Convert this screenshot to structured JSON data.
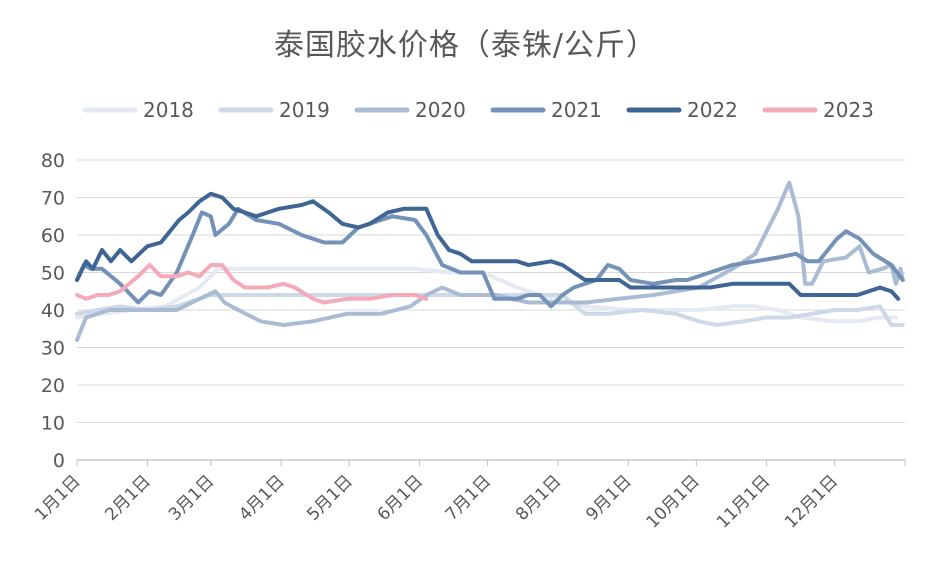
{
  "chart_data": {
    "type": "line",
    "title": "泰国胶水价格（泰铢/公斤）",
    "xlabel": "",
    "ylabel": "",
    "ylim": [
      0,
      80
    ],
    "yticks": [
      0,
      10,
      20,
      30,
      40,
      50,
      60,
      70,
      80
    ],
    "x_unit": "day of year",
    "xlim": [
      1,
      366
    ],
    "xticks": [
      {
        "label": "1月1日",
        "day": 1
      },
      {
        "label": "2月1日",
        "day": 32
      },
      {
        "label": "3月1日",
        "day": 60
      },
      {
        "label": "4月1日",
        "day": 91
      },
      {
        "label": "5月1日",
        "day": 121
      },
      {
        "label": "6月1日",
        "day": 152
      },
      {
        "label": "7月1日",
        "day": 182
      },
      {
        "label": "8月1日",
        "day": 213
      },
      {
        "label": "9月1日",
        "day": 244
      },
      {
        "label": "10月1日",
        "day": 274
      },
      {
        "label": "11月1日",
        "day": 305
      },
      {
        "label": "12月1日",
        "day": 335
      }
    ],
    "grid": "horizontal",
    "legend_position": "top",
    "series": [
      {
        "name": "2018",
        "color": "#e4e9f2",
        "points": [
          [
            1,
            38
          ],
          [
            12,
            39
          ],
          [
            25,
            40
          ],
          [
            40,
            41
          ],
          [
            55,
            46
          ],
          [
            63,
            51
          ],
          [
            75,
            51
          ],
          [
            90,
            51
          ],
          [
            100,
            51
          ],
          [
            110,
            51
          ],
          [
            120,
            51
          ],
          [
            135,
            51
          ],
          [
            150,
            51
          ],
          [
            165,
            50
          ],
          [
            180,
            50
          ],
          [
            195,
            46
          ],
          [
            210,
            43
          ],
          [
            225,
            41
          ],
          [
            245,
            40
          ],
          [
            260,
            40
          ],
          [
            275,
            40
          ],
          [
            290,
            41
          ],
          [
            300,
            41
          ],
          [
            310,
            40
          ],
          [
            320,
            38
          ],
          [
            335,
            37
          ],
          [
            345,
            37
          ],
          [
            355,
            38
          ],
          [
            362,
            38
          ]
        ]
      },
      {
        "name": "2019",
        "color": "#cdd8e8",
        "points": [
          [
            1,
            39
          ],
          [
            10,
            40
          ],
          [
            20,
            41
          ],
          [
            32,
            40
          ],
          [
            45,
            41
          ],
          [
            60,
            44
          ],
          [
            70,
            44
          ],
          [
            80,
            44
          ],
          [
            90,
            44
          ],
          [
            100,
            44
          ],
          [
            110,
            44
          ],
          [
            125,
            44
          ],
          [
            140,
            44
          ],
          [
            155,
            44
          ],
          [
            170,
            44
          ],
          [
            185,
            44
          ],
          [
            200,
            44
          ],
          [
            210,
            44
          ],
          [
            215,
            44
          ],
          [
            225,
            39
          ],
          [
            235,
            39
          ],
          [
            250,
            40
          ],
          [
            265,
            39
          ],
          [
            275,
            37
          ],
          [
            283,
            36
          ],
          [
            295,
            37
          ],
          [
            305,
            38
          ],
          [
            315,
            38
          ],
          [
            325,
            39
          ],
          [
            335,
            40
          ],
          [
            345,
            40
          ],
          [
            355,
            41
          ],
          [
            360,
            36
          ],
          [
            365,
            36
          ]
        ]
      },
      {
        "name": "2020",
        "color": "#a9bcd4",
        "points": [
          [
            1,
            32
          ],
          [
            5,
            38
          ],
          [
            15,
            40
          ],
          [
            30,
            40
          ],
          [
            45,
            40
          ],
          [
            55,
            43
          ],
          [
            62,
            45
          ],
          [
            66,
            42
          ],
          [
            72,
            40
          ],
          [
            82,
            37
          ],
          [
            92,
            36
          ],
          [
            105,
            37
          ],
          [
            120,
            39
          ],
          [
            135,
            39
          ],
          [
            148,
            41
          ],
          [
            155,
            44
          ],
          [
            162,
            46
          ],
          [
            170,
            44
          ],
          [
            185,
            44
          ],
          [
            200,
            42
          ],
          [
            215,
            42
          ],
          [
            225,
            42
          ],
          [
            240,
            43
          ],
          [
            255,
            44
          ],
          [
            265,
            45
          ],
          [
            275,
            46
          ],
          [
            290,
            51
          ],
          [
            300,
            55
          ],
          [
            305,
            61
          ],
          [
            310,
            67
          ],
          [
            315,
            74
          ],
          [
            319,
            65
          ],
          [
            322,
            47
          ],
          [
            325,
            47
          ],
          [
            330,
            53
          ],
          [
            340,
            54
          ],
          [
            346,
            57
          ],
          [
            350,
            50
          ],
          [
            356,
            51
          ],
          [
            360,
            52
          ],
          [
            362,
            47
          ],
          [
            364,
            51
          ],
          [
            365,
            48
          ]
        ]
      },
      {
        "name": "2021",
        "color": "#7492b7",
        "points": [
          [
            1,
            48
          ],
          [
            4,
            52
          ],
          [
            7,
            51
          ],
          [
            12,
            51
          ],
          [
            20,
            47
          ],
          [
            28,
            42
          ],
          [
            33,
            45
          ],
          [
            38,
            44
          ],
          [
            45,
            50
          ],
          [
            52,
            60
          ],
          [
            56,
            66
          ],
          [
            60,
            65
          ],
          [
            62,
            60
          ],
          [
            68,
            63
          ],
          [
            72,
            67
          ],
          [
            80,
            64
          ],
          [
            90,
            63
          ],
          [
            100,
            60
          ],
          [
            110,
            58
          ],
          [
            118,
            58
          ],
          [
            125,
            62
          ],
          [
            130,
            63
          ],
          [
            140,
            65
          ],
          [
            150,
            64
          ],
          [
            155,
            60
          ],
          [
            162,
            52
          ],
          [
            170,
            50
          ],
          [
            180,
            50
          ],
          [
            185,
            43
          ],
          [
            195,
            43
          ],
          [
            200,
            44
          ],
          [
            205,
            44
          ],
          [
            210,
            41
          ],
          [
            215,
            44
          ],
          [
            220,
            46
          ],
          [
            230,
            48
          ],
          [
            235,
            52
          ],
          [
            240,
            51
          ],
          [
            245,
            48
          ],
          [
            255,
            47
          ],
          [
            265,
            48
          ],
          [
            270,
            48
          ],
          [
            280,
            50
          ],
          [
            290,
            52
          ],
          [
            300,
            53
          ],
          [
            310,
            54
          ],
          [
            318,
            55
          ],
          [
            323,
            53
          ],
          [
            328,
            53
          ],
          [
            332,
            56
          ],
          [
            336,
            59
          ],
          [
            340,
            61
          ],
          [
            346,
            59
          ],
          [
            352,
            55
          ],
          [
            360,
            52
          ],
          [
            365,
            48
          ]
        ]
      },
      {
        "name": "2022",
        "color": "#3f6594",
        "points": [
          [
            1,
            48
          ],
          [
            5,
            53
          ],
          [
            8,
            51
          ],
          [
            12,
            56
          ],
          [
            16,
            53
          ],
          [
            20,
            56
          ],
          [
            25,
            53
          ],
          [
            32,
            57
          ],
          [
            38,
            58
          ],
          [
            42,
            61
          ],
          [
            46,
            64
          ],
          [
            50,
            66
          ],
          [
            55,
            69
          ],
          [
            60,
            71
          ],
          [
            65,
            70
          ],
          [
            70,
            67
          ],
          [
            75,
            66
          ],
          [
            80,
            65
          ],
          [
            85,
            66
          ],
          [
            90,
            67
          ],
          [
            100,
            68
          ],
          [
            105,
            69
          ],
          [
            112,
            66
          ],
          [
            118,
            63
          ],
          [
            125,
            62
          ],
          [
            130,
            63
          ],
          [
            138,
            66
          ],
          [
            145,
            67
          ],
          [
            150,
            67
          ],
          [
            155,
            67
          ],
          [
            160,
            60
          ],
          [
            165,
            56
          ],
          [
            170,
            55
          ],
          [
            175,
            53
          ],
          [
            185,
            53
          ],
          [
            195,
            53
          ],
          [
            200,
            52
          ],
          [
            210,
            53
          ],
          [
            215,
            52
          ],
          [
            225,
            48
          ],
          [
            230,
            48
          ],
          [
            240,
            48
          ],
          [
            245,
            46
          ],
          [
            255,
            46
          ],
          [
            270,
            46
          ],
          [
            280,
            46
          ],
          [
            290,
            47
          ],
          [
            300,
            47
          ],
          [
            305,
            47
          ],
          [
            310,
            47
          ],
          [
            315,
            47
          ],
          [
            320,
            44
          ],
          [
            325,
            44
          ],
          [
            335,
            44
          ],
          [
            345,
            44
          ],
          [
            350,
            45
          ],
          [
            355,
            46
          ],
          [
            360,
            45
          ],
          [
            363,
            43
          ]
        ]
      },
      {
        "name": "2023",
        "color": "#f4aab9",
        "points": [
          [
            1,
            44
          ],
          [
            5,
            43
          ],
          [
            10,
            44
          ],
          [
            15,
            44
          ],
          [
            20,
            45
          ],
          [
            28,
            49
          ],
          [
            33,
            52
          ],
          [
            38,
            49
          ],
          [
            45,
            49
          ],
          [
            50,
            50
          ],
          [
            55,
            49
          ],
          [
            60,
            52
          ],
          [
            65,
            52
          ],
          [
            70,
            48
          ],
          [
            75,
            46
          ],
          [
            80,
            46
          ],
          [
            85,
            46
          ],
          [
            92,
            47
          ],
          [
            97,
            46
          ],
          [
            105,
            43
          ],
          [
            110,
            42
          ],
          [
            120,
            43
          ],
          [
            130,
            43
          ],
          [
            140,
            44
          ],
          [
            150,
            44
          ],
          [
            155,
            43
          ]
        ]
      }
    ]
  }
}
